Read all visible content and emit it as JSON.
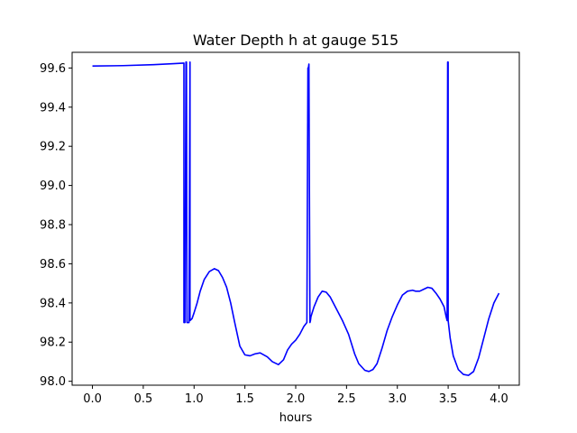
{
  "chart_data": {
    "type": "line",
    "title": "Water Depth h at gauge 515",
    "xlabel": "hours",
    "ylabel": "",
    "xlim": [
      -0.2,
      4.2
    ],
    "ylim": [
      97.98,
      99.68
    ],
    "xticks": [
      0.0,
      0.5,
      1.0,
      1.5,
      2.0,
      2.5,
      3.0,
      3.5,
      4.0
    ],
    "xtick_labels": [
      "0.0",
      "0.5",
      "1.0",
      "1.5",
      "2.0",
      "2.5",
      "3.0",
      "3.5",
      "4.0"
    ],
    "yticks": [
      98.0,
      98.2,
      98.4,
      98.6,
      98.8,
      99.0,
      99.2,
      99.4,
      99.6
    ],
    "ytick_labels": [
      "98.0",
      "98.2",
      "98.4",
      "98.6",
      "98.8",
      "99.0",
      "99.2",
      "99.4",
      "99.6"
    ],
    "grid": false,
    "color": "#0000ff",
    "series": [
      {
        "x": [
          0.0,
          0.3,
          0.6,
          0.8,
          0.9,
          0.9,
          0.91,
          0.92,
          0.925,
          0.93,
          0.95,
          0.96,
          0.96,
          0.98,
          1.0,
          1.03,
          1.06,
          1.1,
          1.15,
          1.2,
          1.24,
          1.28,
          1.32,
          1.36,
          1.4,
          1.45,
          1.5,
          1.55,
          1.6,
          1.65,
          1.72,
          1.77,
          1.83,
          1.88,
          1.92,
          1.96,
          2.0,
          2.04,
          2.08,
          2.11,
          2.12,
          2.125,
          2.13,
          2.14,
          2.145,
          2.15,
          2.18,
          2.22,
          2.26,
          2.3,
          2.34,
          2.4,
          2.46,
          2.52,
          2.58,
          2.62,
          2.68,
          2.72,
          2.76,
          2.8,
          2.85,
          2.9,
          2.95,
          3.0,
          3.05,
          3.1,
          3.15,
          3.18,
          3.22,
          3.26,
          3.3,
          3.34,
          3.38,
          3.42,
          3.46,
          3.48,
          3.49,
          3.495,
          3.5,
          3.5,
          3.52,
          3.55,
          3.6,
          3.65,
          3.7,
          3.75,
          3.8,
          3.85,
          3.9,
          3.95,
          4.0
        ],
        "y": [
          99.61,
          99.612,
          99.617,
          99.622,
          99.625,
          98.3,
          98.3,
          99.63,
          99.63,
          98.3,
          98.3,
          99.63,
          98.31,
          98.32,
          98.35,
          98.4,
          98.46,
          98.52,
          98.56,
          98.575,
          98.565,
          98.53,
          98.48,
          98.4,
          98.3,
          98.18,
          98.135,
          98.13,
          98.14,
          98.145,
          98.125,
          98.1,
          98.085,
          98.11,
          98.16,
          98.19,
          98.21,
          98.24,
          98.28,
          98.3,
          99.6,
          99.6,
          99.62,
          98.3,
          98.31,
          98.33,
          98.38,
          98.43,
          98.46,
          98.455,
          98.43,
          98.37,
          98.31,
          98.24,
          98.14,
          98.09,
          98.056,
          98.05,
          98.06,
          98.09,
          98.17,
          98.26,
          98.33,
          98.39,
          98.44,
          98.46,
          98.465,
          98.46,
          98.46,
          98.47,
          98.48,
          98.475,
          98.45,
          98.42,
          98.38,
          98.33,
          98.31,
          99.63,
          99.63,
          98.31,
          98.22,
          98.13,
          98.06,
          98.035,
          98.03,
          98.05,
          98.12,
          98.22,
          98.32,
          98.4,
          98.45
        ]
      }
    ]
  }
}
